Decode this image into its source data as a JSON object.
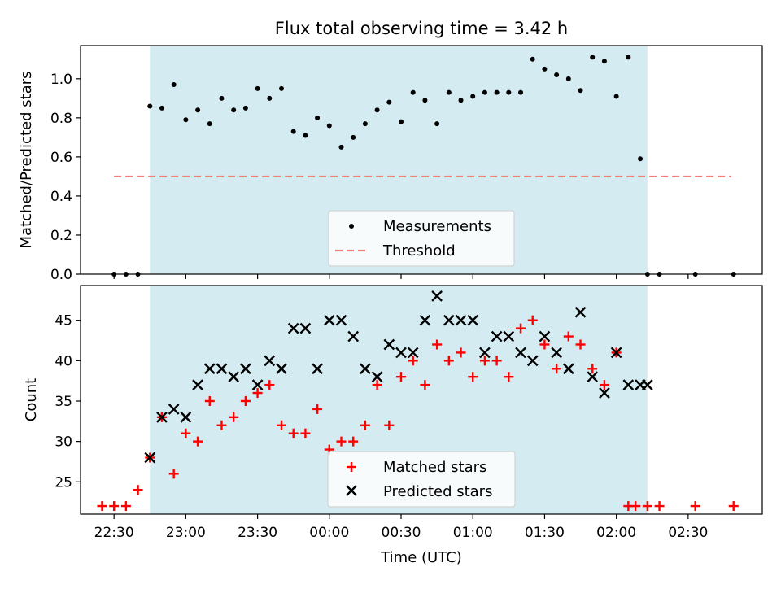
{
  "chart_data": [
    {
      "type": "scatter",
      "title": "Flux total observing time = 3.42 h",
      "xlabel": "",
      "ylabel": "Matched/Predicted stars",
      "ylim": [
        0,
        1.17
      ],
      "yticks": [
        "0.0",
        "0.2",
        "0.4",
        "0.6",
        "0.8",
        "1.0"
      ],
      "xlim": [
        -14,
        271
      ],
      "shaded_span": [
        15,
        223
      ],
      "shade_color": "#d4ebf1",
      "threshold": {
        "name": "Threshold",
        "value": 0.5,
        "x_from": 0,
        "x_to": 258,
        "color": "#f08080"
      },
      "legend": {
        "position": "lower-center",
        "entries": [
          "Measurements",
          "Threshold"
        ]
      },
      "series": [
        {
          "name": "Measurements",
          "color": "#000000",
          "x": [
            0,
            5,
            10,
            15,
            20,
            25,
            30,
            35,
            40,
            45,
            50,
            55,
            60,
            65,
            70,
            75,
            80,
            85,
            90,
            95,
            100,
            105,
            110,
            115,
            120,
            125,
            130,
            135,
            140,
            145,
            150,
            155,
            160,
            165,
            170,
            175,
            180,
            185,
            190,
            195,
            200,
            205,
            210,
            215,
            220,
            223,
            228,
            243,
            259
          ],
          "y": [
            0,
            0,
            0,
            0.86,
            0.85,
            0.97,
            0.79,
            0.84,
            0.77,
            0.9,
            0.84,
            0.85,
            0.95,
            0.9,
            0.95,
            0.73,
            0.71,
            0.8,
            0.76,
            0.65,
            0.7,
            0.77,
            0.84,
            0.88,
            0.78,
            0.93,
            0.89,
            0.77,
            0.93,
            0.89,
            0.91,
            0.93,
            0.93,
            0.93,
            0.93,
            1.1,
            1.05,
            1.02,
            1.0,
            0.94,
            1.11,
            1.09,
            0.91,
            1.11,
            0.59,
            0,
            0,
            0,
            0
          ]
        }
      ]
    },
    {
      "type": "scatter",
      "title": "",
      "xlabel": "Time (UTC)",
      "ylabel": "Count",
      "ylim": [
        21,
        49.3
      ],
      "yticks": [
        "25",
        "30",
        "35",
        "40",
        "45"
      ],
      "xlim": [
        -14,
        271
      ],
      "xticks": [
        "22:30",
        "23:00",
        "23:30",
        "00:00",
        "00:30",
        "01:00",
        "01:30",
        "02:00",
        "02:30"
      ],
      "xtick_values": [
        0,
        30,
        60,
        90,
        120,
        150,
        180,
        210,
        240
      ],
      "shaded_span": [
        15,
        223
      ],
      "shade_color": "#d4ebf1",
      "legend": {
        "position": "lower-center",
        "entries": [
          "Matched stars",
          "Predicted stars"
        ]
      },
      "series": [
        {
          "name": "Matched stars",
          "marker": "plus",
          "color": "#ff0000",
          "x": [
            -5,
            0,
            5,
            10,
            15,
            20,
            25,
            30,
            35,
            40,
            45,
            50,
            55,
            60,
            65,
            70,
            75,
            80,
            85,
            90,
            95,
            100,
            105,
            110,
            115,
            120,
            125,
            130,
            135,
            140,
            145,
            150,
            155,
            160,
            165,
            170,
            175,
            180,
            185,
            190,
            195,
            200,
            205,
            210,
            215,
            218,
            223,
            228,
            243,
            259
          ],
          "y": [
            22,
            22,
            22,
            24,
            28,
            33,
            26,
            31,
            30,
            35,
            32,
            33,
            35,
            36,
            37,
            32,
            31,
            31,
            34,
            29,
            30,
            30,
            32,
            37,
            32,
            38,
            40,
            37,
            42,
            40,
            41,
            38,
            40,
            40,
            38,
            44,
            45,
            42,
            39,
            43,
            42,
            39,
            37,
            41,
            22,
            22,
            22,
            22,
            22,
            22
          ]
        },
        {
          "name": "Predicted stars",
          "marker": "x",
          "color": "#000000",
          "x": [
            15,
            20,
            25,
            30,
            35,
            40,
            45,
            50,
            55,
            60,
            65,
            70,
            75,
            80,
            85,
            90,
            95,
            100,
            105,
            110,
            115,
            120,
            125,
            130,
            135,
            140,
            145,
            150,
            155,
            160,
            165,
            170,
            175,
            180,
            185,
            190,
            195,
            200,
            205,
            210,
            215,
            220,
            223
          ],
          "y": [
            28,
            33,
            34,
            33,
            37,
            39,
            39,
            38,
            39,
            37,
            40,
            39,
            44,
            44,
            39,
            45,
            45,
            43,
            39,
            38,
            42,
            41,
            41,
            45,
            48,
            45,
            45,
            45,
            41,
            43,
            43,
            41,
            40,
            43,
            41,
            39,
            46,
            38,
            36,
            41,
            37,
            37,
            37
          ]
        }
      ]
    }
  ]
}
